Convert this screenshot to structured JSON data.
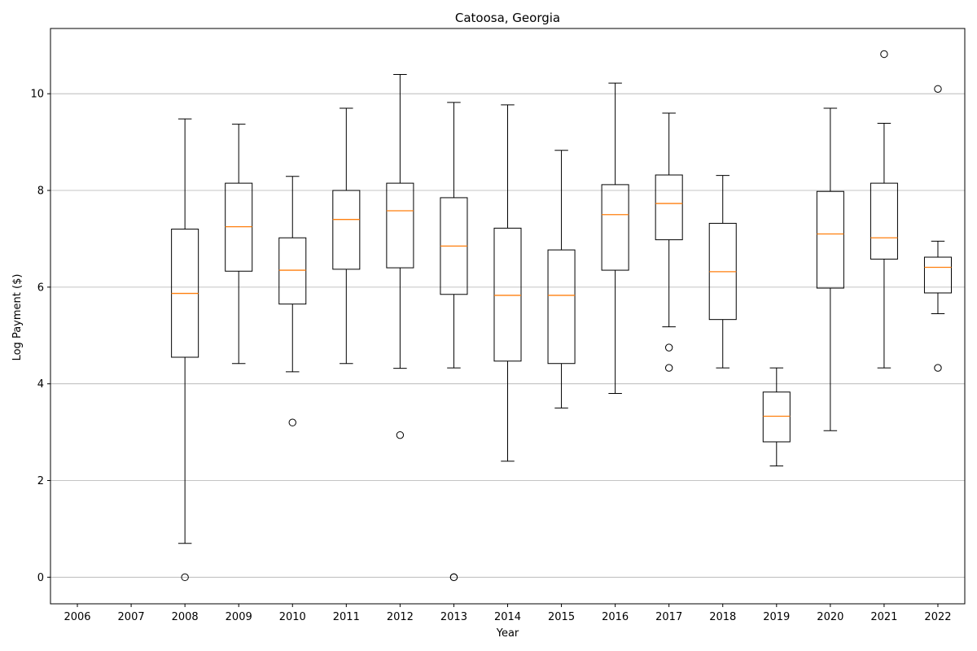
{
  "chart_data": {
    "type": "boxplot",
    "title": "Catoosa, Georgia",
    "xlabel": "Year",
    "ylabel": "Log Payment ($)",
    "categories": [
      "2006",
      "2007",
      "2008",
      "2009",
      "2010",
      "2011",
      "2012",
      "2013",
      "2014",
      "2015",
      "2016",
      "2017",
      "2018",
      "2019",
      "2020",
      "2021",
      "2022"
    ],
    "ylim": [
      -0.55,
      11.35
    ],
    "yticks": [
      0,
      2,
      4,
      6,
      8,
      10
    ],
    "grid": "y",
    "box_color": "#000000",
    "median_color": "#ff7f0e",
    "grid_color": "#b0b0b0",
    "boxes": [
      {
        "year": "2006",
        "empty": true
      },
      {
        "year": "2007",
        "empty": true
      },
      {
        "year": "2008",
        "whislo": 0.7,
        "q1": 4.55,
        "med": 5.87,
        "q3": 7.2,
        "whishi": 9.48,
        "fliers": [
          0.0
        ]
      },
      {
        "year": "2009",
        "whislo": 4.42,
        "q1": 6.33,
        "med": 7.25,
        "q3": 8.15,
        "whishi": 9.37,
        "fliers": []
      },
      {
        "year": "2010",
        "whislo": 4.25,
        "q1": 5.65,
        "med": 6.35,
        "q3": 7.02,
        "whishi": 8.29,
        "fliers": [
          3.2
        ]
      },
      {
        "year": "2011",
        "whislo": 4.42,
        "q1": 6.37,
        "med": 7.4,
        "q3": 8.0,
        "whishi": 9.7,
        "fliers": []
      },
      {
        "year": "2012",
        "whislo": 4.32,
        "q1": 6.4,
        "med": 7.58,
        "q3": 8.15,
        "whishi": 10.4,
        "fliers": [
          2.94
        ]
      },
      {
        "year": "2013",
        "whislo": 4.33,
        "q1": 5.85,
        "med": 6.85,
        "q3": 7.85,
        "whishi": 9.82,
        "fliers": [
          0.0,
          0.0
        ]
      },
      {
        "year": "2014",
        "whislo": 2.4,
        "q1": 4.47,
        "med": 5.83,
        "q3": 7.22,
        "whishi": 9.77,
        "fliers": []
      },
      {
        "year": "2015",
        "whislo": 3.5,
        "q1": 4.42,
        "med": 5.83,
        "q3": 6.77,
        "whishi": 8.83,
        "fliers": []
      },
      {
        "year": "2016",
        "whislo": 3.8,
        "q1": 6.35,
        "med": 7.5,
        "q3": 8.12,
        "whishi": 10.22,
        "fliers": []
      },
      {
        "year": "2017",
        "whislo": 5.18,
        "q1": 6.98,
        "med": 7.73,
        "q3": 8.32,
        "whishi": 9.6,
        "fliers": [
          4.75,
          4.33
        ]
      },
      {
        "year": "2018",
        "whislo": 4.33,
        "q1": 5.33,
        "med": 6.32,
        "q3": 7.32,
        "whishi": 8.31,
        "fliers": []
      },
      {
        "year": "2019",
        "whislo": 2.3,
        "q1": 2.8,
        "med": 3.33,
        "q3": 3.83,
        "whishi": 4.33,
        "fliers": []
      },
      {
        "year": "2020",
        "whislo": 3.03,
        "q1": 5.98,
        "med": 7.1,
        "q3": 7.98,
        "whishi": 9.7,
        "fliers": []
      },
      {
        "year": "2021",
        "whislo": 4.33,
        "q1": 6.58,
        "med": 7.02,
        "q3": 8.15,
        "whishi": 9.39,
        "fliers": [
          10.82
        ]
      },
      {
        "year": "2022",
        "whislo": 5.45,
        "q1": 5.88,
        "med": 6.41,
        "q3": 6.62,
        "whishi": 6.95,
        "fliers": [
          10.1,
          4.33
        ]
      }
    ]
  }
}
